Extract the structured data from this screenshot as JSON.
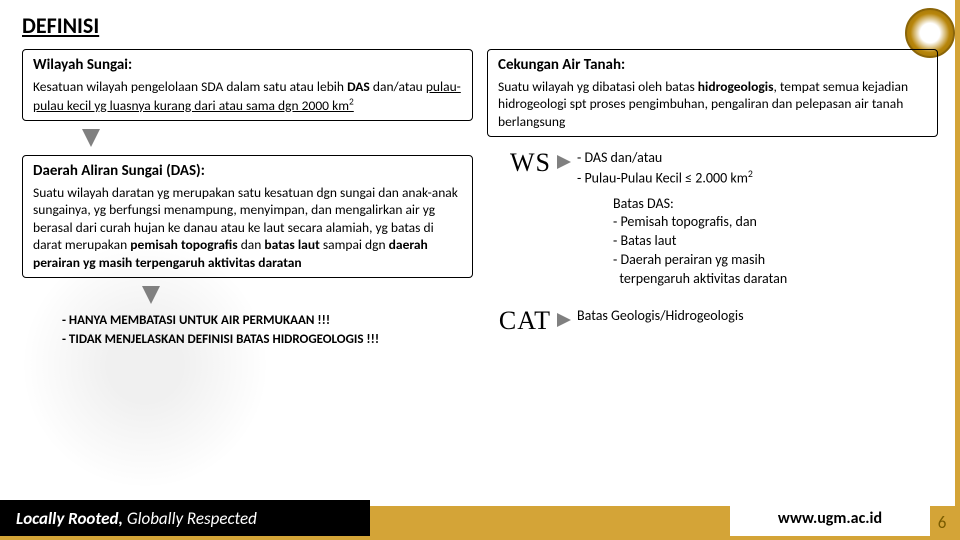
{
  "title": "DEFINISI",
  "box1": {
    "title": "Wilayah Sungai:",
    "body_html": "Kesatuan wilayah pengelolaan SDA dalam satu atau lebih <b>DAS</b> dan/atau <u>pulau-pulau kecil yg luasnya kurang dari atau sama dgn 2000 km<sup>2</sup></u>"
  },
  "box2": {
    "title": "Daerah Aliran Sungai (DAS):",
    "body_html": "Suatu wilayah daratan yg merupakan satu kesatuan dgn sungai dan anak-anak sungainya, yg berfungsi menampung, menyimpan, dan mengalirkan air yg berasal dari curah hujan ke danau atau ke laut secara alamiah, yg batas di darat merupakan <b>pemisah topografis</b> dan <b>batas laut</b> sampai dgn <b>daerah perairan yg masih terpengaruh aktivitas daratan</b>"
  },
  "note1": "- HANYA MEMBATASI UNTUK AIR PERMUKAAN !!!",
  "note2": "- TIDAK MENJELASKAN DEFINISI BATAS HIDROGEOLOGIS !!!",
  "box3": {
    "title": "Cekungan Air Tanah:",
    "body_html": "Suatu wilayah yg dibatasi oleh batas <b>hidrogeologis</b>, tempat semua kejadian hidrogeologi spt proses pengimbuhan, pengaliran dan pelepasan air tanah berlangsung"
  },
  "ws": {
    "label": "WS",
    "line1": "- DAS dan/atau",
    "line2_html": "- Pulau-Pulau Kecil ≤ 2.000 km<sup>2</sup>",
    "sub_title": "Batas DAS:",
    "sub1": "- Pemisah topografis, dan",
    "sub2": "- Batas laut",
    "sub3": "- Daerah perairan yg masih",
    "sub4": "  terpengaruh aktivitas daratan"
  },
  "cat": {
    "label": "CAT",
    "text": "Batas Geologis/Hidrogeologis"
  },
  "footer": {
    "tagline_bold": "Locally Rooted,",
    "tagline_rest": "Globally Respected",
    "url": "www.ugm.ac.id",
    "page": "6"
  },
  "colors": {
    "gold": "#d4a437",
    "black": "#000000"
  }
}
